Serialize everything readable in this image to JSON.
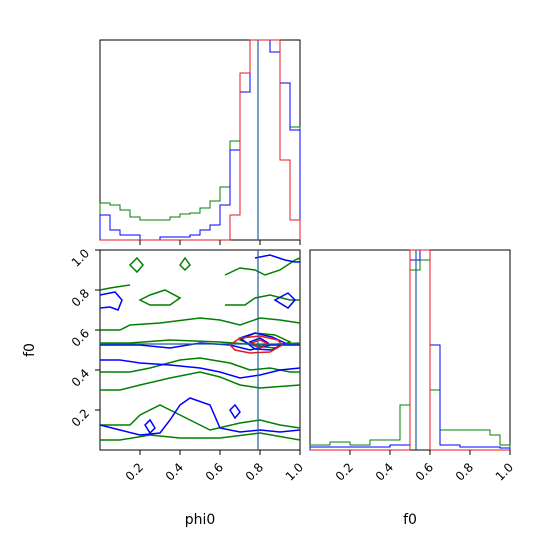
{
  "chart_data": {
    "type": "corner",
    "parameters": [
      "phi0",
      "f0"
    ],
    "truths": {
      "phi0": 0.79,
      "f0": 0.53
    },
    "truth_color": "#1f5fa0",
    "series_colors": {
      "red": "#e41a1c",
      "blue": "#0000ff",
      "green": "#008000"
    },
    "ticks": {
      "phi0": [
        "0.2",
        "0.4",
        "0.6",
        "0.8",
        "1.0"
      ],
      "f0_axis": [
        "0.2",
        "0.4",
        "0.6",
        "0.8",
        "1.0"
      ],
      "f0_y": [
        "0.2",
        "0.4",
        "0.6",
        "0.8",
        "1.0"
      ]
    },
    "xlim": {
      "phi0": [
        0,
        1
      ],
      "f0": [
        0,
        1
      ]
    },
    "hist_phi0": {
      "bins": [
        0,
        0.05,
        0.1,
        0.15,
        0.2,
        0.25,
        0.3,
        0.35,
        0.4,
        0.45,
        0.5,
        0.55,
        0.6,
        0.65,
        0.7,
        0.75,
        0.8,
        0.85,
        0.9,
        0.95,
        1.0
      ],
      "ymax": 200,
      "red": [
        0,
        0,
        0,
        0,
        0,
        0,
        0,
        0,
        0,
        0,
        0,
        0,
        0,
        25,
        167,
        200,
        200,
        200,
        80,
        20
      ],
      "blue": [
        25,
        10,
        5,
        5,
        0,
        0,
        3,
        3,
        3,
        5,
        10,
        15,
        35,
        90,
        148,
        200,
        200,
        188,
        157,
        110
      ],
      "green": [
        37,
        35,
        30,
        23,
        20,
        20,
        20,
        23,
        26,
        27,
        32,
        39,
        53,
        99,
        167,
        200,
        200,
        200,
        157,
        113
      ]
    },
    "hist_f0": {
      "bins": [
        0,
        0.05,
        0.1,
        0.15,
        0.2,
        0.25,
        0.3,
        0.35,
        0.4,
        0.45,
        0.5,
        0.55,
        0.6,
        0.65,
        0.7,
        0.75,
        0.8,
        0.85,
        0.9,
        0.95,
        1.0
      ],
      "ymax": 200,
      "red": [
        0,
        0,
        0,
        0,
        0,
        0,
        0,
        0,
        0,
        0,
        200,
        200,
        0,
        0,
        0,
        0,
        0,
        0,
        0,
        0
      ],
      "blue": [
        3,
        3,
        3,
        3,
        3,
        3,
        3,
        3,
        5,
        5,
        190,
        200,
        105,
        5,
        5,
        3,
        3,
        3,
        3,
        2
      ],
      "green": [
        5,
        5,
        8,
        8,
        5,
        5,
        10,
        10,
        10,
        45,
        180,
        190,
        60,
        20,
        20,
        20,
        20,
        20,
        15,
        5
      ]
    }
  }
}
